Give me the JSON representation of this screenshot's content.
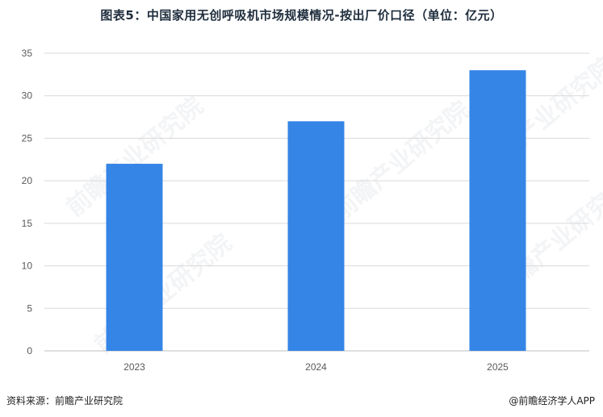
{
  "title": "图表5：中国家用无创呼吸机市场规模情况-按出厂价口径（单位：亿元）",
  "source": "资料来源：前瞻产业研究院",
  "credit": "@前瞻经济学人APP",
  "watermark": "前瞻产业研究院",
  "colors": {
    "bar": "#3585e6",
    "grid": "#d9d9d9",
    "axis": "#bfbfbf"
  },
  "chart_data": {
    "type": "bar",
    "title": "图表5：中国家用无创呼吸机市场规模情况-按出厂价口径（单位：亿元）",
    "categories": [
      "2023",
      "2024",
      "2025"
    ],
    "values": [
      22,
      27,
      33
    ],
    "ylim": [
      0,
      35
    ],
    "yticks": [
      0,
      5,
      10,
      15,
      20,
      25,
      30,
      35
    ],
    "xlabel": "",
    "ylabel": "",
    "grid": true
  }
}
